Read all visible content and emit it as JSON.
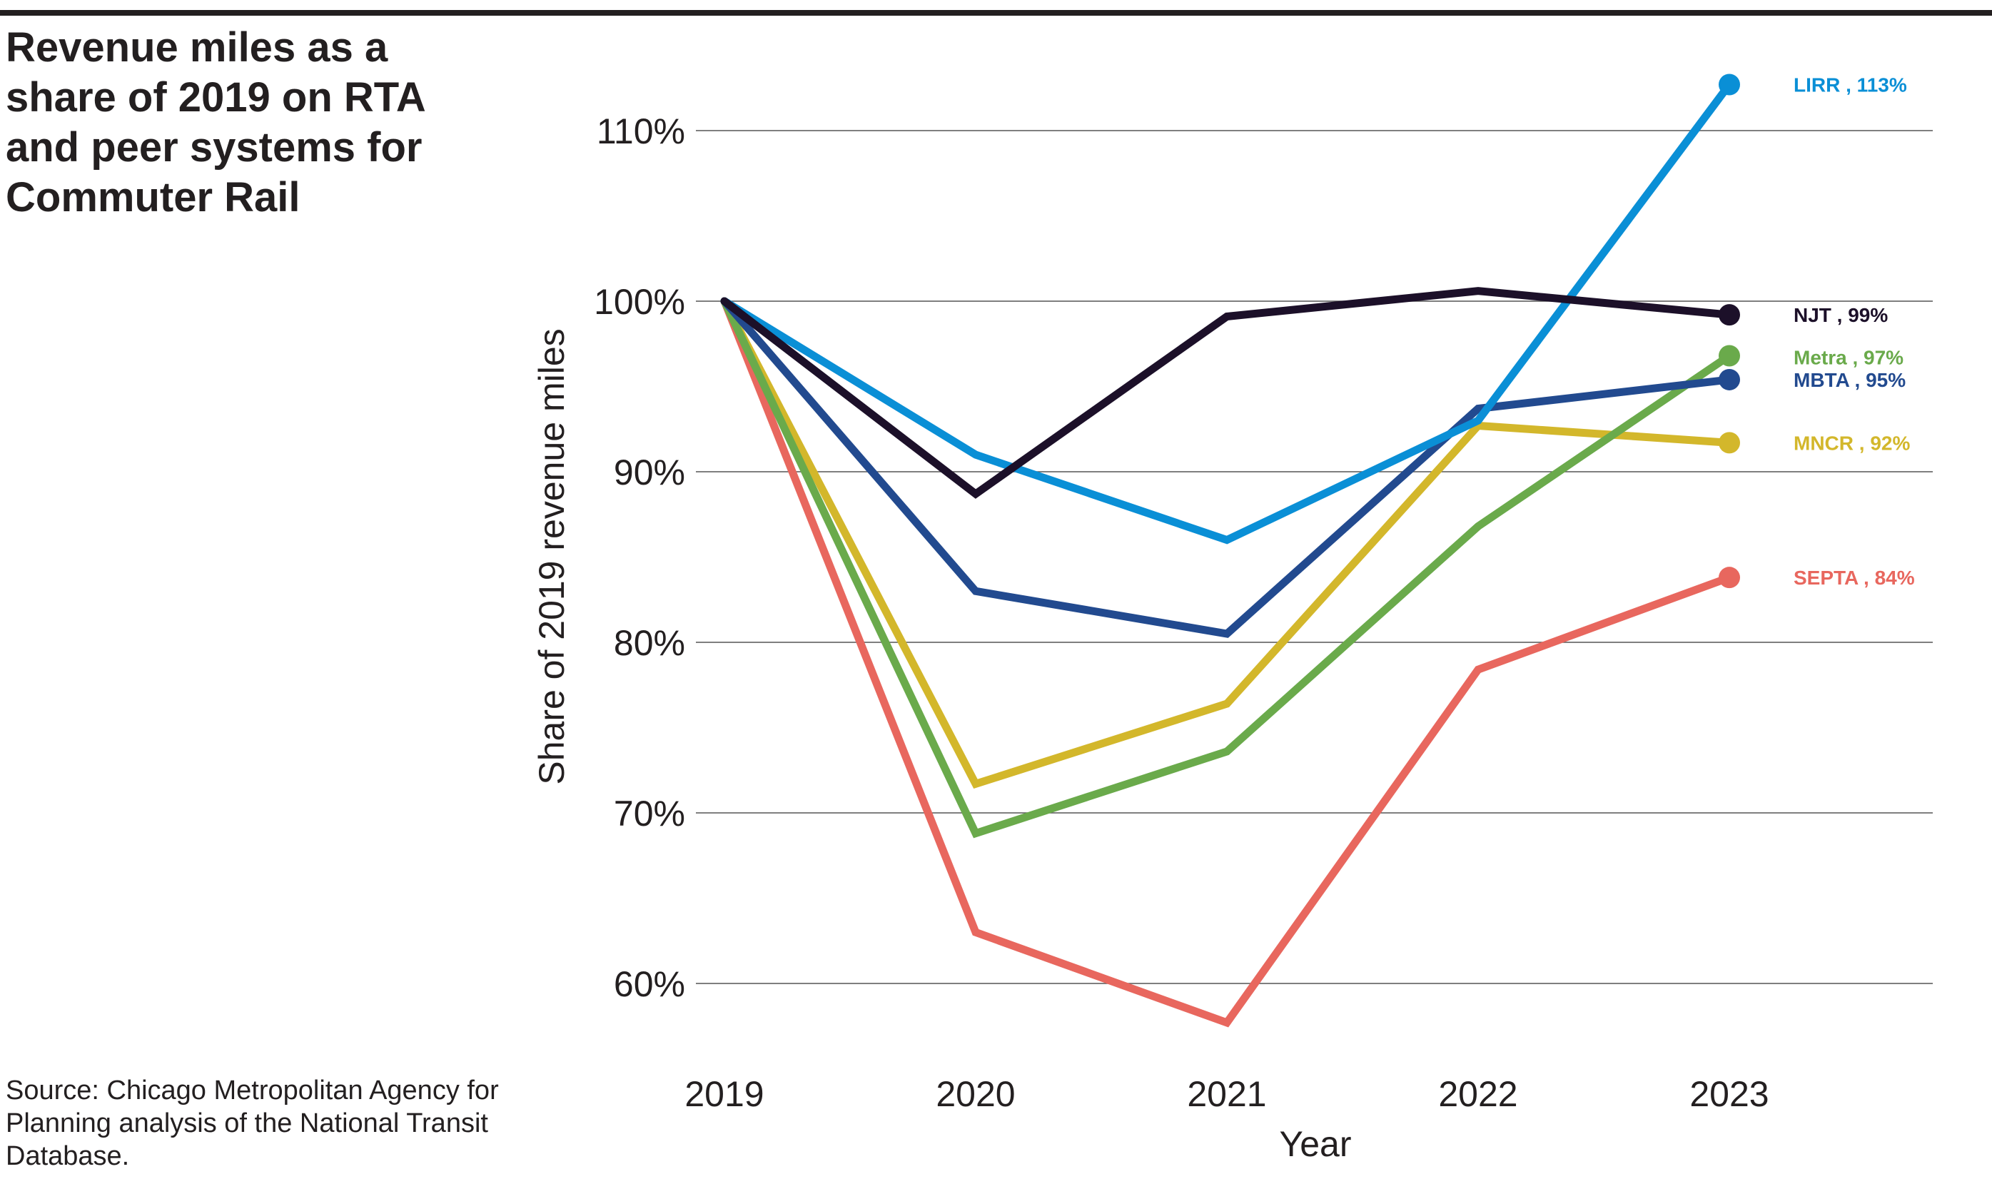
{
  "title": "Revenue miles as a share of 2019 on RTA and peer systems for Commuter Rail",
  "source": "Source: Chicago Metropolitan Agency for Planning analysis of the National Transit Database.",
  "chart_data": {
    "type": "line",
    "title": "Revenue miles as a share of 2019 on RTA and peer systems for Commuter Rail",
    "xlabel": "Year",
    "ylabel": "Share of 2019 revenue miles",
    "x": [
      2019,
      2020,
      2021,
      2022,
      2023
    ],
    "x_tick_labels": [
      "2019",
      "2020",
      "2021",
      "2022",
      "2023"
    ],
    "ylim": [
      55,
      115
    ],
    "y_ticks": [
      60,
      70,
      80,
      90,
      100,
      110
    ],
    "y_tick_labels": [
      "60%",
      "70%",
      "80%",
      "90%",
      "100%",
      "110%"
    ],
    "grid": "horizontal",
    "legend": "end-of-line labels",
    "series": [
      {
        "name": "LIRR",
        "end_label": "LIRR , 113%",
        "color": "#0a8fd6",
        "values": [
          100,
          91,
          86,
          93,
          112.7
        ]
      },
      {
        "name": "NJT",
        "end_label": "NJT , 99%",
        "color": "#1c1029",
        "values": [
          100,
          88.7,
          99.1,
          100.6,
          99.2
        ]
      },
      {
        "name": "Metra",
        "end_label": "Metra , 97%",
        "color": "#6aaa4b",
        "values": [
          100,
          68.8,
          73.6,
          86.8,
          96.8
        ]
      },
      {
        "name": "MBTA",
        "end_label": "MBTA , 95%",
        "color": "#224a8f",
        "values": [
          100,
          83,
          80.5,
          93.7,
          95.4
        ]
      },
      {
        "name": "MNCR",
        "end_label": "MNCR , 92%",
        "color": "#d3b72b",
        "values": [
          100,
          71.7,
          76.4,
          92.7,
          91.7
        ]
      },
      {
        "name": "SEPTA",
        "end_label": "SEPTA , 84%",
        "color": "#e8675e",
        "values": [
          100,
          63,
          57.7,
          78.4,
          83.8
        ]
      }
    ]
  }
}
